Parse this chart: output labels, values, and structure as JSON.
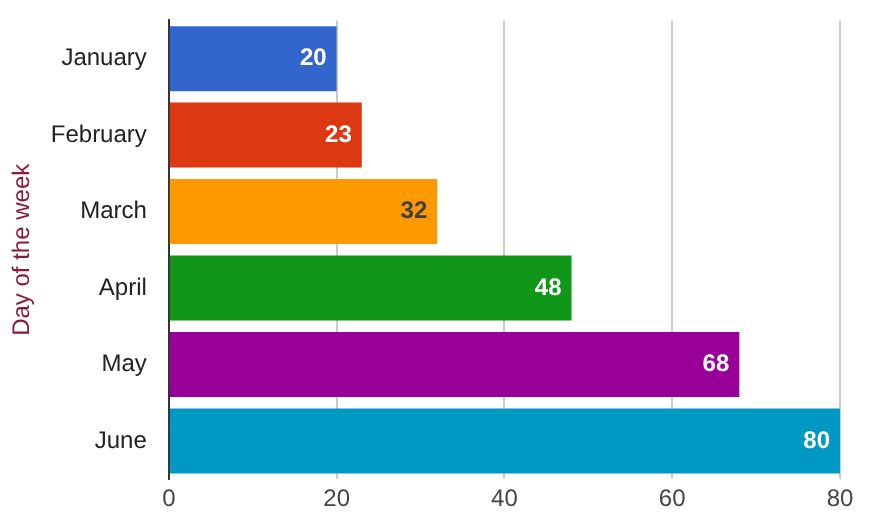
{
  "chart_data": {
    "type": "bar",
    "orientation": "horizontal",
    "ylabel": "Day of the week",
    "categories": [
      "January",
      "February",
      "March",
      "April",
      "May",
      "June"
    ],
    "values": [
      20,
      23,
      32,
      48,
      68,
      80
    ],
    "colors": [
      "#3366cc",
      "#dc3912",
      "#ff9900",
      "#109618",
      "#990099",
      "#0099c6"
    ],
    "xlim": [
      0,
      80
    ],
    "xticks": [
      0,
      20,
      40,
      60,
      80
    ],
    "grid": "x",
    "data_labels": true,
    "legend": false
  }
}
